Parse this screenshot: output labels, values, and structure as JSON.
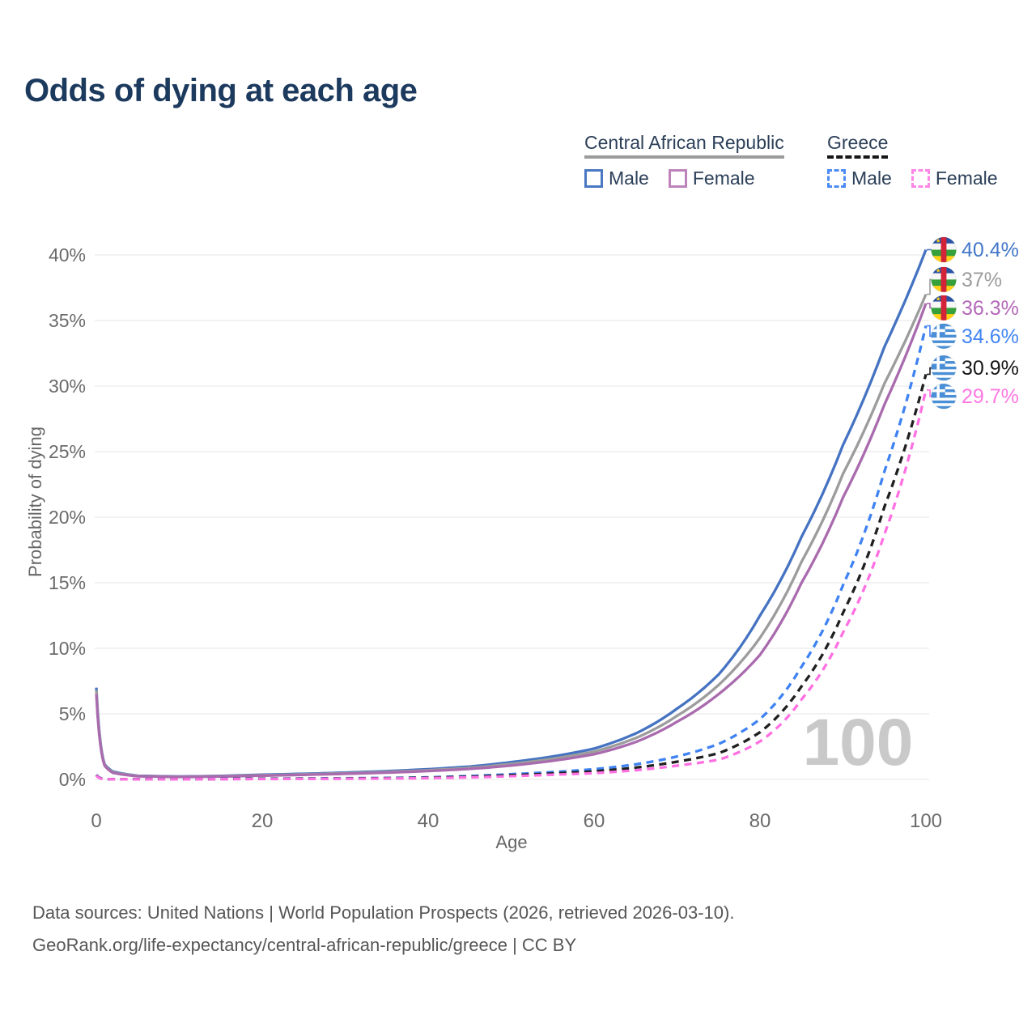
{
  "title": "Odds of dying at each age",
  "legend": {
    "groups": [
      {
        "label": "Central African Republic",
        "underline_style": "solid",
        "underline_color": "#9c9c9c",
        "items": [
          {
            "label": "Male",
            "color": "#4a78c3",
            "style": "solid"
          },
          {
            "label": "Female",
            "color": "#bd84bb",
            "style": "solid"
          }
        ]
      },
      {
        "label": "Greece",
        "underline_style": "dashed",
        "underline_color": "#161616",
        "items": [
          {
            "label": "Male",
            "color": "#4a8bf4",
            "style": "dashed"
          },
          {
            "label": "Female",
            "color": "#ff85e6",
            "style": "dashed"
          }
        ]
      }
    ]
  },
  "chart_data": {
    "type": "line",
    "title": "Odds of dying at each age",
    "xlabel": "Age",
    "ylabel": "Probability of dying",
    "xlim": [
      0,
      100
    ],
    "ylim": [
      0,
      40.5
    ],
    "grid": "horizontal-only",
    "legend_position": "top-right",
    "watermark": "100",
    "x_ticks": [
      0,
      20,
      40,
      60,
      80,
      100
    ],
    "y_ticks": [
      {
        "value": 0,
        "label": "0%"
      },
      {
        "value": 5,
        "label": "5%"
      },
      {
        "value": 10,
        "label": "10%"
      },
      {
        "value": 15,
        "label": "15%"
      },
      {
        "value": 20,
        "label": "20%"
      },
      {
        "value": 25,
        "label": "25%"
      },
      {
        "value": 30,
        "label": "30%"
      },
      {
        "value": 35,
        "label": "35%"
      },
      {
        "value": 40,
        "label": "40%"
      }
    ],
    "x": [
      0,
      1,
      2,
      5,
      10,
      15,
      20,
      25,
      30,
      35,
      40,
      45,
      50,
      55,
      60,
      65,
      70,
      75,
      80,
      85,
      90,
      95,
      100
    ],
    "series": [
      {
        "name": "Central African Republic Male",
        "color": "#4573c2",
        "dash": false,
        "flag": "caf",
        "end_label": "40.4%",
        "end_label_color": "#4377c9",
        "values": [
          7.0,
          1.15,
          0.6,
          0.28,
          0.22,
          0.27,
          0.36,
          0.43,
          0.52,
          0.63,
          0.78,
          0.98,
          1.32,
          1.75,
          2.35,
          3.5,
          5.4,
          8.0,
          12.5,
          18.5,
          25.5,
          33.0,
          40.4
        ]
      },
      {
        "name": "Central African Republic Both sexes",
        "color": "#9c9c9c",
        "dash": false,
        "flag": "caf",
        "end_label": "37%",
        "end_label_color": "#9c9c9c",
        "values": [
          6.8,
          1.1,
          0.55,
          0.26,
          0.2,
          0.25,
          0.32,
          0.39,
          0.47,
          0.57,
          0.7,
          0.88,
          1.18,
          1.58,
          2.12,
          3.15,
          4.85,
          7.2,
          10.8,
          16.6,
          23.3,
          30.2,
          37.0
        ]
      },
      {
        "name": "Central African Republic Female",
        "color": "#a96bae",
        "dash": false,
        "flag": "caf",
        "end_label": "36.3%",
        "end_label_color": "#b468b8",
        "values": [
          6.5,
          1.05,
          0.5,
          0.24,
          0.19,
          0.22,
          0.29,
          0.35,
          0.43,
          0.52,
          0.64,
          0.8,
          1.06,
          1.42,
          1.92,
          2.85,
          4.4,
          6.5,
          9.5,
          15.0,
          21.5,
          28.6,
          36.3
        ]
      },
      {
        "name": "Greece Male",
        "color": "#3f82f2",
        "dash": true,
        "flag": "grc",
        "end_label": "34.6%",
        "end_label_color": "#4285f4",
        "values": [
          0.35,
          0.03,
          0.02,
          0.01,
          0.012,
          0.04,
          0.06,
          0.07,
          0.09,
          0.11,
          0.16,
          0.26,
          0.4,
          0.56,
          0.78,
          1.15,
          1.75,
          2.7,
          4.6,
          8.6,
          14.8,
          23.5,
          34.6
        ]
      },
      {
        "name": "Greece Both sexes",
        "color": "#1f1f1f",
        "dash": true,
        "flag": "grc",
        "end_label": "30.9%",
        "end_label_color": "#151515",
        "values": [
          0.33,
          0.027,
          0.016,
          0.01,
          0.01,
          0.03,
          0.05,
          0.06,
          0.07,
          0.09,
          0.13,
          0.21,
          0.32,
          0.45,
          0.62,
          0.9,
          1.35,
          2.0,
          3.6,
          7.1,
          12.7,
          20.8,
          30.9
        ]
      },
      {
        "name": "Greece Female",
        "color": "#ff70e2",
        "dash": true,
        "flag": "grc",
        "end_label": "29.7%",
        "end_label_color": "#ff77e2",
        "values": [
          0.3,
          0.022,
          0.013,
          0.008,
          0.009,
          0.02,
          0.03,
          0.04,
          0.05,
          0.07,
          0.1,
          0.16,
          0.25,
          0.36,
          0.48,
          0.7,
          1.05,
          1.5,
          2.9,
          6.1,
          11.2,
          18.7,
          29.7
        ]
      }
    ]
  },
  "footer": {
    "line1": "Data sources: United Nations | World Population Prospects (2026, retrieved 2026-03-10).",
    "line2": "GeoRank.org/life-expectancy/central-african-republic/greece | CC BY"
  }
}
